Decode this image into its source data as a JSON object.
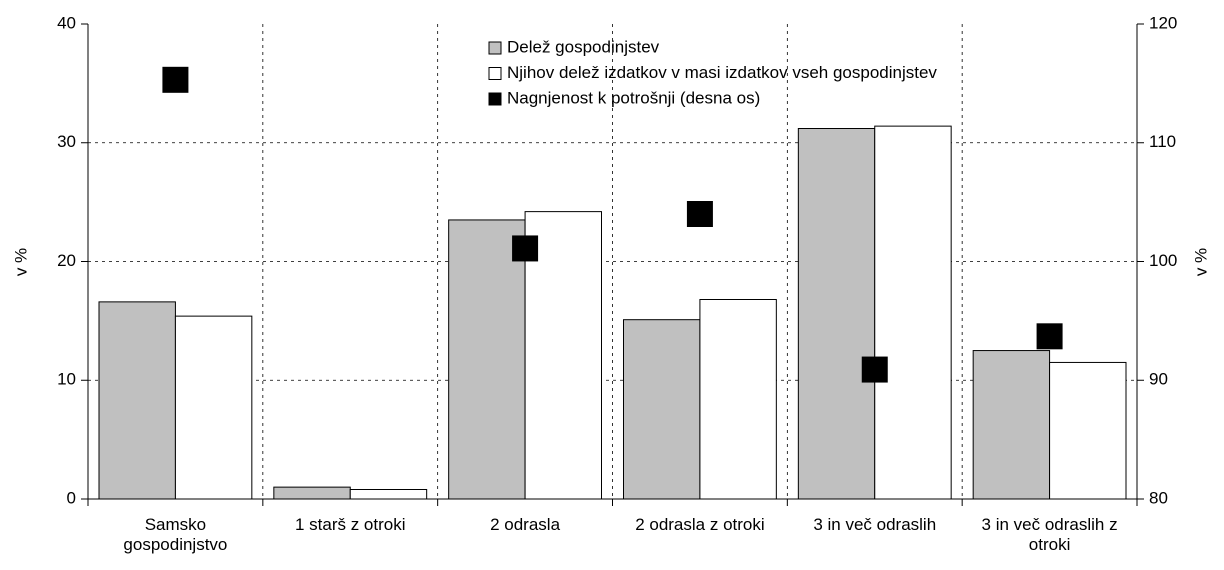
{
  "chart_data": {
    "type": "bar",
    "categories": [
      "Samsko gospodinjstvo",
      "1 starš z otroki",
      "2 odrasla",
      "2 odrasla z otroki",
      "3 in več odraslih",
      "3 in več odraslih z otroki"
    ],
    "series": [
      {
        "name": "Delež gospodinjstev",
        "color": "#c0c0c0",
        "values": [
          16.6,
          1.0,
          23.5,
          15.1,
          31.2,
          12.5
        ]
      },
      {
        "name": "Njihov delež izdatkov v masi izdatkov vseh gospodinjstev",
        "color": "#ffffff",
        "values": [
          15.4,
          0.8,
          24.2,
          16.8,
          31.4,
          11.5
        ]
      },
      {
        "name": "Nagnjenost k potrošnji (desna os)",
        "color": "#000000",
        "axis": "y2",
        "type": "scatter",
        "values": [
          115.3,
          null,
          101.1,
          104.0,
          90.9,
          93.7
        ]
      }
    ],
    "ylabel": "v %",
    "y2label": "v %",
    "ylim": [
      0,
      40
    ],
    "yticks": [
      0,
      10,
      20,
      30,
      40
    ],
    "y2lim": [
      80,
      120
    ],
    "y2ticks": [
      80,
      90,
      100,
      110,
      120
    ],
    "grid": true,
    "legend": "top"
  }
}
